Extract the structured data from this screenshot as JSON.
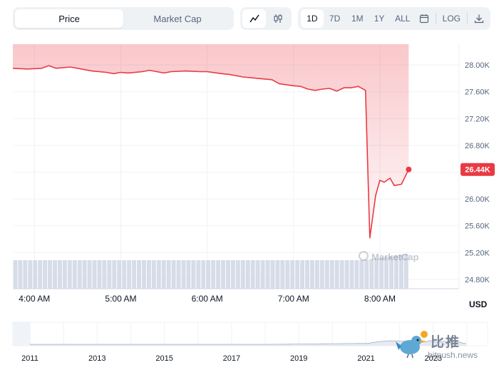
{
  "toolbar": {
    "tabs": [
      {
        "label": "Price",
        "active": true
      },
      {
        "label": "Market Cap",
        "active": false
      }
    ],
    "chart_types": [
      {
        "icon": "line-chart-icon",
        "active": true
      },
      {
        "icon": "candlestick-icon",
        "active": false
      }
    ],
    "ranges": [
      {
        "label": "1D",
        "active": true
      },
      {
        "label": "7D",
        "active": false
      },
      {
        "label": "1M",
        "active": false
      },
      {
        "label": "1Y",
        "active": false
      },
      {
        "label": "ALL",
        "active": false
      }
    ],
    "calendar_icon": "calendar-icon",
    "log_label": "LOG",
    "download_icon": "download-icon"
  },
  "chart_data": {
    "type": "area",
    "x_unit_hint": "time of day",
    "x": [
      "3:45",
      "3:55",
      "4:05",
      "4:10",
      "4:15",
      "4:25",
      "4:30",
      "4:40",
      "4:50",
      "4:55",
      "5:00",
      "5:05",
      "5:15",
      "5:20",
      "5:30",
      "5:35",
      "5:45",
      "5:55",
      "6:00",
      "6:10",
      "6:15",
      "6:25",
      "6:35",
      "6:45",
      "6:50",
      "7:00",
      "7:05",
      "7:10",
      "7:15",
      "7:20",
      "7:25",
      "7:30",
      "7:35",
      "7:40",
      "7:45",
      "7:50",
      "7:53",
      "7:57",
      "8:00",
      "8:03",
      "8:07",
      "8:10",
      "8:15",
      "8:20"
    ],
    "values": [
      27950,
      27940,
      27950,
      27990,
      27950,
      27970,
      27950,
      27910,
      27890,
      27870,
      27890,
      27880,
      27900,
      27920,
      27880,
      27900,
      27910,
      27900,
      27900,
      27870,
      27860,
      27820,
      27800,
      27780,
      27720,
      27690,
      27680,
      27640,
      27620,
      27640,
      27650,
      27610,
      27660,
      27660,
      27680,
      27620,
      25420,
      26050,
      26280,
      26250,
      26310,
      26200,
      26220,
      26440
    ],
    "current_value": 26440,
    "current_label": "26.44K",
    "y_ticks": [
      "28.00K",
      "27.60K",
      "27.20K",
      "26.80K",
      "26.40K",
      "26.00K",
      "25.60K",
      "25.20K",
      "24.80K"
    ],
    "y_tick_values": [
      28000,
      27600,
      27200,
      26800,
      26400,
      26000,
      25600,
      25200,
      24800
    ],
    "ylim": [
      24660,
      28310
    ],
    "x_ticks": [
      "4:00 AM",
      "5:00 AM",
      "6:00 AM",
      "7:00 AM",
      "8:00 AM"
    ],
    "x_tick_positions": [
      "4:00",
      "5:00",
      "6:00",
      "7:00",
      "8:00"
    ],
    "xlim": [
      "3:45",
      "8:55"
    ],
    "volume_bars": true,
    "ylabel": "USD",
    "line_color": "#ea3943",
    "fill_color": "#ea3943",
    "volume_color": "#cfd6e4",
    "grid": true,
    "overview": {
      "year_ticks": [
        "2011",
        "2013",
        "2015",
        "2017",
        "2019",
        "2021",
        "2023"
      ]
    }
  },
  "watermark": "MarketCap",
  "overlay": {
    "cn_text": "比推",
    "url": "bitpush.news"
  }
}
